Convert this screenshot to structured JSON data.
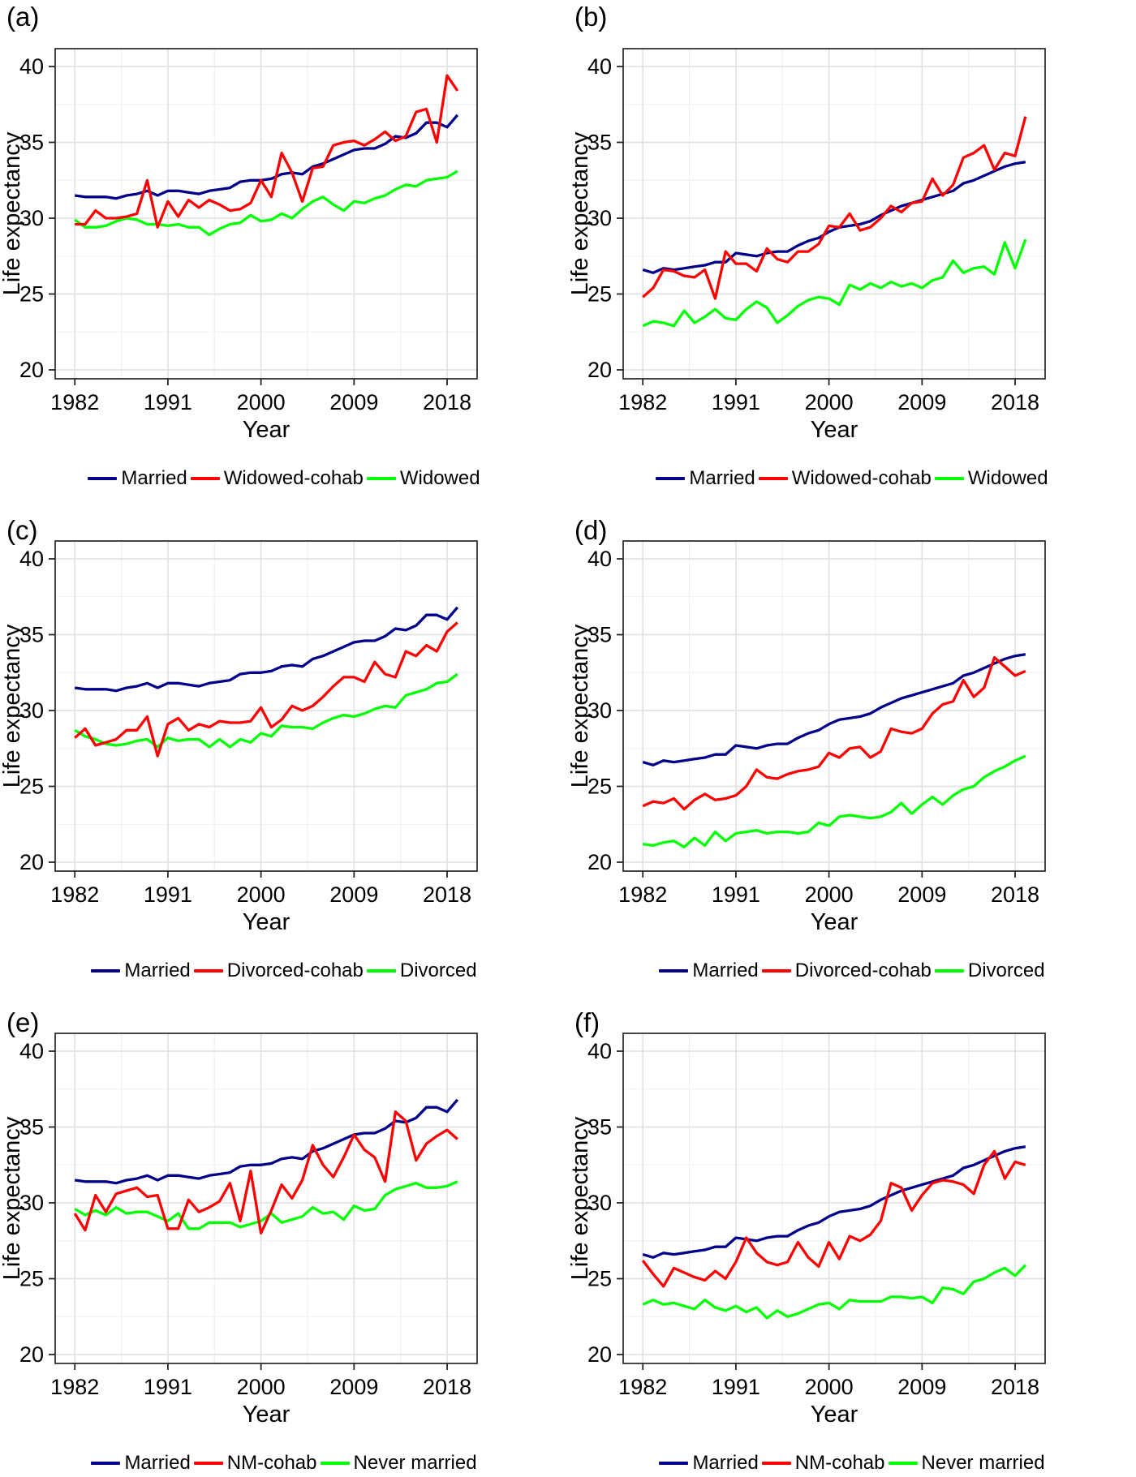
{
  "figure": {
    "x_label": "Year",
    "y_label": "Life expectancy",
    "x_ticks": [
      1982,
      1991,
      2000,
      2009,
      2018
    ],
    "y_ticks": [
      20,
      25,
      30,
      35,
      40
    ],
    "years": [
      1982,
      1983,
      1984,
      1985,
      1986,
      1987,
      1988,
      1989,
      1990,
      1991,
      1992,
      1993,
      1994,
      1995,
      1996,
      1997,
      1998,
      1999,
      2000,
      2001,
      2002,
      2003,
      2004,
      2005,
      2006,
      2007,
      2008,
      2009,
      2010,
      2011,
      2012,
      2013,
      2014,
      2015,
      2016,
      2017,
      2018,
      2019
    ],
    "colors": {
      "married": "#00008B",
      "cohab": "#FF0000",
      "status": "#00FF00"
    },
    "grid_major_color": "#e2e2e2",
    "grid_minor_color": "#efefef",
    "border_color": "#262626",
    "background": "#ffffff"
  },
  "chart_data": [
    {
      "panel": "a",
      "label": "(a)",
      "type": "line",
      "xlabel": "Year",
      "ylabel": "Life expectancy",
      "xlim": [
        1982,
        2019
      ],
      "ylim": [
        20,
        40
      ],
      "grid": true,
      "legend_position": "bottom",
      "series": [
        {
          "name": "Married",
          "color": "#00008B",
          "values": [
            31.5,
            31.4,
            31.4,
            31.4,
            31.3,
            31.5,
            31.6,
            31.8,
            31.5,
            31.8,
            31.8,
            31.7,
            31.6,
            31.8,
            31.9,
            32.0,
            32.4,
            32.5,
            32.5,
            32.6,
            32.9,
            33.0,
            32.9,
            33.4,
            33.6,
            33.9,
            34.2,
            34.5,
            34.6,
            34.6,
            34.9,
            35.4,
            35.3,
            35.6,
            36.3,
            36.3,
            36.0,
            36.8
          ]
        },
        {
          "name": "Widowed-cohab",
          "color": "#FF0000",
          "values": [
            29.6,
            29.6,
            30.5,
            30.0,
            30.0,
            30.1,
            30.3,
            32.5,
            29.4,
            31.1,
            30.1,
            31.2,
            30.7,
            31.2,
            30.9,
            30.5,
            30.6,
            31.0,
            32.5,
            31.4,
            34.3,
            33.0,
            31.1,
            33.3,
            33.4,
            34.8,
            35.0,
            35.1,
            34.8,
            35.2,
            35.7,
            35.1,
            35.4,
            37.0,
            37.2,
            35.0,
            39.4,
            38.4
          ]
        },
        {
          "name": "Widowed",
          "color": "#00FF00",
          "values": [
            29.9,
            29.4,
            29.4,
            29.5,
            29.8,
            30.0,
            29.9,
            29.6,
            29.6,
            29.5,
            29.6,
            29.4,
            29.4,
            28.9,
            29.3,
            29.6,
            29.7,
            30.2,
            29.8,
            29.9,
            30.3,
            30.0,
            30.6,
            31.1,
            31.4,
            30.9,
            30.5,
            31.1,
            31.0,
            31.3,
            31.5,
            31.9,
            32.2,
            32.1,
            32.5,
            32.6,
            32.7,
            33.1
          ]
        }
      ]
    },
    {
      "panel": "b",
      "label": "(b)",
      "type": "line",
      "xlabel": "Year",
      "ylabel": "Life expectancy",
      "xlim": [
        1982,
        2019
      ],
      "ylim": [
        20,
        40
      ],
      "grid": true,
      "legend_position": "bottom",
      "series": [
        {
          "name": "Married",
          "color": "#00008B",
          "values": [
            26.6,
            26.4,
            26.7,
            26.6,
            26.7,
            26.8,
            26.9,
            27.1,
            27.1,
            27.7,
            27.6,
            27.5,
            27.7,
            27.8,
            27.8,
            28.2,
            28.5,
            28.7,
            29.1,
            29.4,
            29.5,
            29.6,
            29.8,
            30.2,
            30.5,
            30.8,
            31.0,
            31.2,
            31.4,
            31.6,
            31.8,
            32.3,
            32.5,
            32.8,
            33.1,
            33.4,
            33.6,
            33.7
          ]
        },
        {
          "name": "Widowed-cohab",
          "color": "#FF0000",
          "values": [
            24.8,
            25.4,
            26.6,
            26.5,
            26.2,
            26.1,
            26.6,
            24.7,
            27.8,
            27.0,
            27.0,
            26.5,
            28.0,
            27.3,
            27.1,
            27.8,
            27.8,
            28.3,
            29.5,
            29.4,
            30.3,
            29.2,
            29.4,
            30.0,
            30.8,
            30.4,
            31.0,
            31.1,
            32.6,
            31.5,
            32.2,
            34.0,
            34.3,
            34.8,
            33.2,
            34.3,
            34.1,
            36.7
          ]
        },
        {
          "name": "Widowed",
          "color": "#00FF00",
          "values": [
            22.9,
            23.2,
            23.1,
            22.9,
            23.9,
            23.1,
            23.5,
            24.0,
            23.4,
            23.3,
            24.0,
            24.5,
            24.1,
            23.1,
            23.6,
            24.2,
            24.6,
            24.8,
            24.7,
            24.3,
            25.6,
            25.3,
            25.7,
            25.4,
            25.8,
            25.5,
            25.7,
            25.4,
            25.9,
            26.1,
            27.2,
            26.4,
            26.7,
            26.8,
            26.3,
            28.4,
            26.7,
            28.6
          ]
        }
      ]
    },
    {
      "panel": "c",
      "label": "(c)",
      "type": "line",
      "xlabel": "Year",
      "ylabel": "Life expectancy",
      "xlim": [
        1982,
        2019
      ],
      "ylim": [
        20,
        40
      ],
      "grid": true,
      "legend_position": "bottom",
      "series": [
        {
          "name": "Married",
          "color": "#00008B",
          "values": [
            31.5,
            31.4,
            31.4,
            31.4,
            31.3,
            31.5,
            31.6,
            31.8,
            31.5,
            31.8,
            31.8,
            31.7,
            31.6,
            31.8,
            31.9,
            32.0,
            32.4,
            32.5,
            32.5,
            32.6,
            32.9,
            33.0,
            32.9,
            33.4,
            33.6,
            33.9,
            34.2,
            34.5,
            34.6,
            34.6,
            34.9,
            35.4,
            35.3,
            35.6,
            36.3,
            36.3,
            36.0,
            36.8
          ]
        },
        {
          "name": "Divorced-cohab",
          "color": "#FF0000",
          "values": [
            28.2,
            28.8,
            27.7,
            27.9,
            28.1,
            28.7,
            28.7,
            29.6,
            27.0,
            29.1,
            29.5,
            28.7,
            29.1,
            28.9,
            29.3,
            29.2,
            29.2,
            29.3,
            30.2,
            28.9,
            29.4,
            30.3,
            30.0,
            30.3,
            30.9,
            31.6,
            32.2,
            32.2,
            31.9,
            33.2,
            32.4,
            32.2,
            33.9,
            33.6,
            34.3,
            33.9,
            35.2,
            35.8
          ]
        },
        {
          "name": "Divorced",
          "color": "#00FF00",
          "values": [
            28.7,
            28.3,
            28.1,
            27.8,
            27.7,
            27.8,
            28.0,
            28.1,
            27.6,
            28.2,
            28.0,
            28.1,
            28.1,
            27.6,
            28.1,
            27.6,
            28.1,
            27.9,
            28.5,
            28.3,
            29.0,
            28.9,
            28.9,
            28.8,
            29.2,
            29.5,
            29.7,
            29.6,
            29.8,
            30.1,
            30.3,
            30.2,
            31.0,
            31.2,
            31.4,
            31.8,
            31.9,
            32.4
          ]
        }
      ]
    },
    {
      "panel": "d",
      "label": "(d)",
      "type": "line",
      "xlabel": "Year",
      "ylabel": "Life expectancy",
      "xlim": [
        1982,
        2019
      ],
      "ylim": [
        20,
        40
      ],
      "grid": true,
      "legend_position": "bottom",
      "series": [
        {
          "name": "Married",
          "color": "#00008B",
          "values": [
            26.6,
            26.4,
            26.7,
            26.6,
            26.7,
            26.8,
            26.9,
            27.1,
            27.1,
            27.7,
            27.6,
            27.5,
            27.7,
            27.8,
            27.8,
            28.2,
            28.5,
            28.7,
            29.1,
            29.4,
            29.5,
            29.6,
            29.8,
            30.2,
            30.5,
            30.8,
            31.0,
            31.2,
            31.4,
            31.6,
            31.8,
            32.3,
            32.5,
            32.8,
            33.1,
            33.4,
            33.6,
            33.7
          ]
        },
        {
          "name": "Divorced-cohab",
          "color": "#FF0000",
          "values": [
            23.7,
            24.0,
            23.9,
            24.2,
            23.5,
            24.1,
            24.5,
            24.1,
            24.2,
            24.4,
            25.0,
            26.1,
            25.6,
            25.5,
            25.8,
            26.0,
            26.1,
            26.3,
            27.2,
            26.9,
            27.5,
            27.6,
            26.9,
            27.3,
            28.8,
            28.6,
            28.5,
            28.8,
            29.8,
            30.4,
            30.6,
            32.0,
            30.9,
            31.5,
            33.5,
            32.9,
            32.3,
            32.6
          ]
        },
        {
          "name": "Divorced",
          "color": "#00FF00",
          "values": [
            21.2,
            21.1,
            21.3,
            21.4,
            21.0,
            21.6,
            21.1,
            22.0,
            21.4,
            21.9,
            22.0,
            22.1,
            21.9,
            22.0,
            22.0,
            21.9,
            22.0,
            22.6,
            22.4,
            23.0,
            23.1,
            23.0,
            22.9,
            23.0,
            23.3,
            23.9,
            23.2,
            23.8,
            24.3,
            23.8,
            24.4,
            24.8,
            25.0,
            25.6,
            26.0,
            26.3,
            26.7,
            27.0
          ]
        }
      ]
    },
    {
      "panel": "e",
      "label": "(e)",
      "type": "line",
      "xlabel": "Year",
      "ylabel": "Life expectancy",
      "xlim": [
        1982,
        2019
      ],
      "ylim": [
        20,
        40
      ],
      "grid": true,
      "legend_position": "bottom",
      "series": [
        {
          "name": "Married",
          "color": "#00008B",
          "values": [
            31.5,
            31.4,
            31.4,
            31.4,
            31.3,
            31.5,
            31.6,
            31.8,
            31.5,
            31.8,
            31.8,
            31.7,
            31.6,
            31.8,
            31.9,
            32.0,
            32.4,
            32.5,
            32.5,
            32.6,
            32.9,
            33.0,
            32.9,
            33.4,
            33.6,
            33.9,
            34.2,
            34.5,
            34.6,
            34.6,
            34.9,
            35.4,
            35.3,
            35.6,
            36.3,
            36.3,
            36.0,
            36.8
          ]
        },
        {
          "name": "NM-cohab",
          "color": "#FF0000",
          "values": [
            29.3,
            28.2,
            30.5,
            29.4,
            30.6,
            30.8,
            31.0,
            30.4,
            30.5,
            28.3,
            28.3,
            30.2,
            29.4,
            29.7,
            30.1,
            31.3,
            28.8,
            32.1,
            28.0,
            29.5,
            31.2,
            30.3,
            31.5,
            33.8,
            32.5,
            31.7,
            33.0,
            34.5,
            33.5,
            33.0,
            31.4,
            36.0,
            35.4,
            32.8,
            33.9,
            34.4,
            34.8,
            34.2
          ]
        },
        {
          "name": "Never married",
          "color": "#00FF00",
          "values": [
            29.6,
            29.2,
            29.5,
            29.2,
            29.7,
            29.3,
            29.4,
            29.4,
            29.1,
            28.8,
            29.3,
            28.3,
            28.3,
            28.7,
            28.7,
            28.7,
            28.4,
            28.6,
            28.8,
            29.3,
            28.7,
            28.9,
            29.1,
            29.7,
            29.3,
            29.4,
            28.9,
            29.8,
            29.5,
            29.6,
            30.5,
            30.9,
            31.1,
            31.3,
            31.0,
            31.0,
            31.1,
            31.4
          ]
        }
      ]
    },
    {
      "panel": "f",
      "label": "(f)",
      "type": "line",
      "xlabel": "Year",
      "ylabel": "Life expectancy",
      "xlim": [
        1982,
        2019
      ],
      "ylim": [
        20,
        40
      ],
      "grid": true,
      "legend_position": "bottom",
      "series": [
        {
          "name": "Married",
          "color": "#00008B",
          "values": [
            26.6,
            26.4,
            26.7,
            26.6,
            26.7,
            26.8,
            26.9,
            27.1,
            27.1,
            27.7,
            27.6,
            27.5,
            27.7,
            27.8,
            27.8,
            28.2,
            28.5,
            28.7,
            29.1,
            29.4,
            29.5,
            29.6,
            29.8,
            30.2,
            30.5,
            30.8,
            31.0,
            31.2,
            31.4,
            31.6,
            31.8,
            32.3,
            32.5,
            32.8,
            33.1,
            33.4,
            33.6,
            33.7
          ]
        },
        {
          "name": "NM-cohab",
          "color": "#FF0000",
          "values": [
            26.2,
            25.3,
            24.5,
            25.7,
            25.4,
            25.1,
            24.9,
            25.5,
            25.0,
            26.1,
            27.7,
            26.7,
            26.1,
            25.9,
            26.1,
            27.4,
            26.4,
            25.8,
            27.4,
            26.3,
            27.8,
            27.5,
            27.9,
            28.8,
            31.3,
            31.0,
            29.5,
            30.5,
            31.3,
            31.5,
            31.4,
            31.2,
            30.6,
            32.5,
            33.4,
            31.6,
            32.7,
            32.5
          ]
        },
        {
          "name": "Never married",
          "color": "#00FF00",
          "values": [
            23.3,
            23.6,
            23.3,
            23.4,
            23.2,
            23.0,
            23.6,
            23.1,
            22.9,
            23.2,
            22.8,
            23.1,
            22.4,
            22.9,
            22.5,
            22.7,
            23.0,
            23.3,
            23.4,
            23.0,
            23.6,
            23.5,
            23.5,
            23.5,
            23.8,
            23.8,
            23.7,
            23.8,
            23.4,
            24.4,
            24.3,
            24.0,
            24.8,
            25.0,
            25.4,
            25.7,
            25.2,
            25.9
          ]
        }
      ]
    }
  ]
}
